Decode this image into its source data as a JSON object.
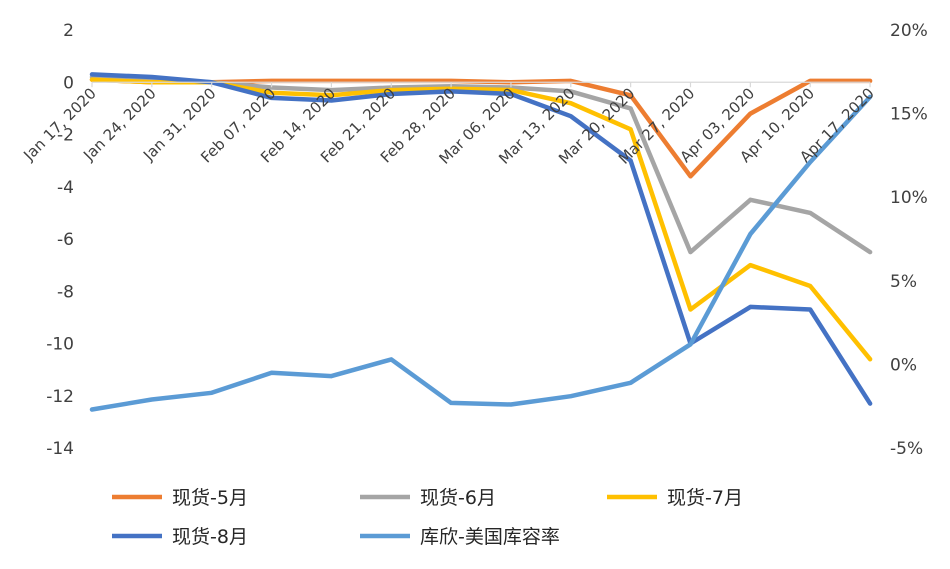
{
  "chart_data": {
    "type": "line",
    "x": [
      "Jan 17, 2020",
      "Jan 24, 2020",
      "Jan 31, 2020",
      "Feb 07, 2020",
      "Feb 14, 2020",
      "Feb 21, 2020",
      "Feb 28, 2020",
      "Mar 06, 2020",
      "Mar 13, 2020",
      "Mar 20, 2020",
      "Mar 27, 2020",
      "Apr 03, 2020",
      "Apr 10, 2020",
      "Apr 17, 2020"
    ],
    "y_left": {
      "range": [
        -14,
        2
      ],
      "ticks": [
        2,
        0,
        -2,
        -4,
        -6,
        -8,
        -10,
        -12,
        -14
      ],
      "tick_labels": [
        "2",
        "0",
        "-2",
        "-4",
        "-6",
        "-8",
        "-10",
        "-12",
        "-14"
      ]
    },
    "y_right": {
      "range": [
        -0.05,
        0.2
      ],
      "ticks": [
        0.2,
        0.15,
        0.1,
        0.05,
        0.0,
        -0.05
      ],
      "tick_labels": [
        "20%",
        "15%",
        "10%",
        "5%",
        "0%",
        "-5%"
      ]
    },
    "grid": false,
    "legend_position": "bottom",
    "series": [
      {
        "name": "现货-5月",
        "axis": "left",
        "color": "#ED7D31",
        "values": [
          0.1,
          0.0,
          0.0,
          0.05,
          0.05,
          0.05,
          0.05,
          0.0,
          0.05,
          -0.5,
          -3.6,
          -1.2,
          0.05,
          0.05
        ]
      },
      {
        "name": "现货-6月",
        "axis": "left",
        "color": "#A5A5A5",
        "values": [
          0.2,
          0.1,
          0.0,
          -0.2,
          -0.3,
          -0.2,
          -0.15,
          -0.2,
          -0.35,
          -1.0,
          -6.5,
          -4.5,
          -5.0,
          -6.5
        ]
      },
      {
        "name": "现货-7月",
        "axis": "left",
        "color": "#FFC000",
        "values": [
          0.1,
          0.0,
          0.0,
          -0.4,
          -0.5,
          -0.3,
          -0.25,
          -0.3,
          -0.8,
          -1.8,
          -8.7,
          -7.0,
          -7.8,
          -10.6
        ]
      },
      {
        "name": "现货-8月",
        "axis": "left",
        "color": "#4472C4",
        "values": [
          0.3,
          0.2,
          0.0,
          -0.6,
          -0.7,
          -0.45,
          -0.35,
          -0.45,
          -1.3,
          -3.0,
          -10.0,
          -8.6,
          -8.7,
          -12.3
        ]
      },
      {
        "name": "库欣-美国库容率",
        "axis": "right",
        "color": "#5B9BD5",
        "values": [
          -0.027,
          -0.021,
          -0.017,
          -0.005,
          -0.007,
          0.003,
          -0.023,
          -0.024,
          -0.019,
          -0.011,
          0.012,
          0.078,
          0.121,
          0.16
        ]
      }
    ]
  }
}
